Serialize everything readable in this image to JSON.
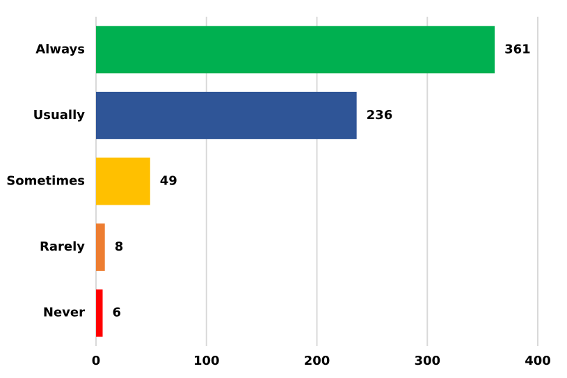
{
  "chart_data": {
    "type": "bar",
    "orientation": "horizontal",
    "categories": [
      "Always",
      "Usually",
      "Sometimes",
      "Rarely",
      "Never"
    ],
    "values": [
      361,
      236,
      49,
      8,
      6
    ],
    "colors": [
      "#00b050",
      "#2f5597",
      "#ffc000",
      "#ed7d31",
      "#ff0000"
    ],
    "xlim": [
      0,
      400
    ],
    "xticks": [
      0,
      100,
      200,
      300,
      400
    ],
    "grid": true
  }
}
